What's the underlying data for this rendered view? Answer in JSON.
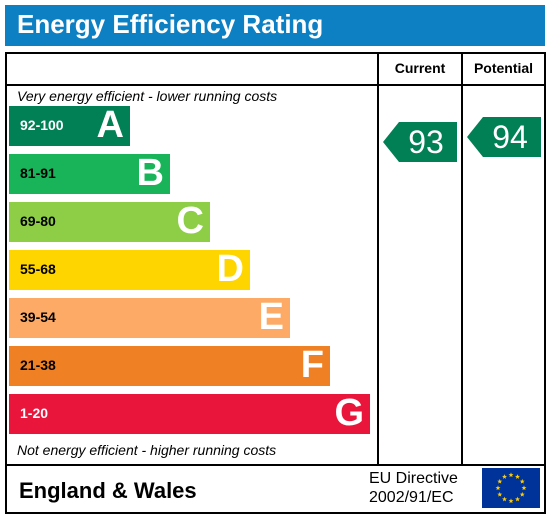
{
  "header": {
    "title": "Energy Efficiency Rating",
    "background": "#0c80c3"
  },
  "columns": {
    "current": "Current",
    "potential": "Potential"
  },
  "captions": {
    "top": "Very energy efficient - lower running costs",
    "bottom": "Not energy efficient - higher running costs"
  },
  "bands": [
    {
      "range": "92-100",
      "letter": "A",
      "color": "#008054"
    },
    {
      "range": "81-91",
      "letter": "B",
      "color": "#19b459"
    },
    {
      "range": "69-80",
      "letter": "C",
      "color": "#8dce46"
    },
    {
      "range": "55-68",
      "letter": "D",
      "color": "#ffd500"
    },
    {
      "range": "39-54",
      "letter": "E",
      "color": "#fcaa65"
    },
    {
      "range": "21-38",
      "letter": "F",
      "color": "#ef8023"
    },
    {
      "range": "1-20",
      "letter": "G",
      "color": "#e9153b"
    }
  ],
  "ratings": {
    "current": {
      "value": "93",
      "band": "A",
      "color": "#008054"
    },
    "potential": {
      "value": "94",
      "band": "A",
      "color": "#008054"
    }
  },
  "footer": {
    "country": "England & Wales",
    "directive_line1": "EU Directive",
    "directive_line2": "2002/91/EC",
    "flag_icon": "eu-flag-icon",
    "flag_color": "#003399",
    "star_color": "#ffcc00"
  }
}
